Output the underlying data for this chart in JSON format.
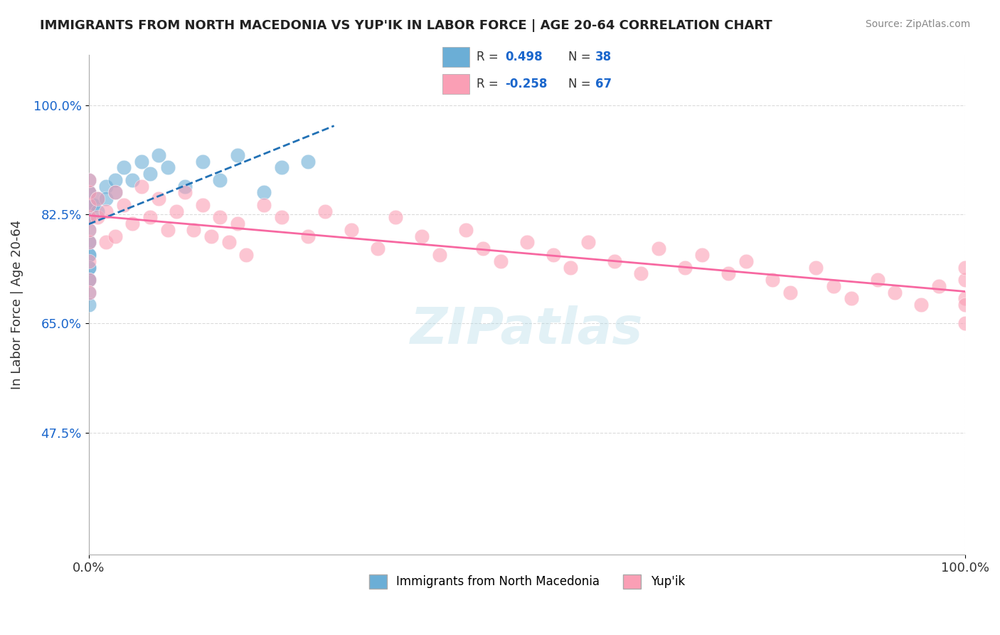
{
  "title": "IMMIGRANTS FROM NORTH MACEDONIA VS YUP'IK IN LABOR FORCE | AGE 20-64 CORRELATION CHART",
  "source": "Source: ZipAtlas.com",
  "ylabel": "In Labor Force | Age 20-64",
  "x_ticklabels": [
    "0.0%",
    "100.0%"
  ],
  "y_ticklabels": [
    "47.5%",
    "65.0%",
    "82.5%",
    "100.0%"
  ],
  "y_tick_values": [
    0.475,
    0.65,
    0.825,
    1.0
  ],
  "x_lim": [
    0.0,
    1.0
  ],
  "y_lim": [
    0.28,
    1.08
  ],
  "legend_labels": [
    "Immigrants from North Macedonia",
    "Yup'ik"
  ],
  "r_values": [
    0.498,
    -0.258
  ],
  "n_values": [
    38,
    67
  ],
  "blue_color": "#6baed6",
  "pink_color": "#fa9fb5",
  "blue_line_color": "#2171b5",
  "pink_line_color": "#f768a1",
  "watermark": "ZIPatlas",
  "blue_scatter_x": [
    0.0,
    0.0,
    0.0,
    0.0,
    0.0,
    0.0,
    0.0,
    0.0,
    0.0,
    0.0,
    0.0,
    0.0,
    0.0,
    0.0,
    0.0,
    0.0,
    0.0,
    0.0,
    0.005,
    0.01,
    0.01,
    0.02,
    0.02,
    0.03,
    0.03,
    0.04,
    0.05,
    0.06,
    0.07,
    0.08,
    0.09,
    0.11,
    0.13,
    0.15,
    0.17,
    0.2,
    0.22,
    0.25
  ],
  "blue_scatter_y": [
    0.72,
    0.74,
    0.76,
    0.78,
    0.8,
    0.82,
    0.84,
    0.86,
    0.88,
    0.86,
    0.84,
    0.82,
    0.78,
    0.76,
    0.74,
    0.72,
    0.7,
    0.68,
    0.84,
    0.85,
    0.83,
    0.87,
    0.85,
    0.88,
    0.86,
    0.9,
    0.88,
    0.91,
    0.89,
    0.92,
    0.9,
    0.87,
    0.91,
    0.88,
    0.92,
    0.86,
    0.9,
    0.91
  ],
  "pink_scatter_x": [
    0.0,
    0.0,
    0.0,
    0.0,
    0.0,
    0.0,
    0.0,
    0.0,
    0.0,
    0.01,
    0.01,
    0.02,
    0.02,
    0.03,
    0.03,
    0.04,
    0.05,
    0.06,
    0.07,
    0.08,
    0.09,
    0.1,
    0.11,
    0.12,
    0.13,
    0.14,
    0.15,
    0.16,
    0.17,
    0.18,
    0.2,
    0.22,
    0.25,
    0.27,
    0.3,
    0.33,
    0.35,
    0.38,
    0.4,
    0.43,
    0.45,
    0.47,
    0.5,
    0.53,
    0.55,
    0.57,
    0.6,
    0.63,
    0.65,
    0.68,
    0.7,
    0.73,
    0.75,
    0.78,
    0.8,
    0.83,
    0.85,
    0.87,
    0.9,
    0.92,
    0.95,
    0.97,
    1.0,
    1.0,
    1.0,
    1.0,
    1.0
  ],
  "pink_scatter_y": [
    0.78,
    0.8,
    0.82,
    0.84,
    0.86,
    0.88,
    0.75,
    0.72,
    0.7,
    0.82,
    0.85,
    0.83,
    0.78,
    0.86,
    0.79,
    0.84,
    0.81,
    0.87,
    0.82,
    0.85,
    0.8,
    0.83,
    0.86,
    0.8,
    0.84,
    0.79,
    0.82,
    0.78,
    0.81,
    0.76,
    0.84,
    0.82,
    0.79,
    0.83,
    0.8,
    0.77,
    0.82,
    0.79,
    0.76,
    0.8,
    0.77,
    0.75,
    0.78,
    0.76,
    0.74,
    0.78,
    0.75,
    0.73,
    0.77,
    0.74,
    0.76,
    0.73,
    0.75,
    0.72,
    0.7,
    0.74,
    0.71,
    0.69,
    0.72,
    0.7,
    0.68,
    0.71,
    0.72,
    0.69,
    0.74,
    0.68,
    0.65
  ]
}
